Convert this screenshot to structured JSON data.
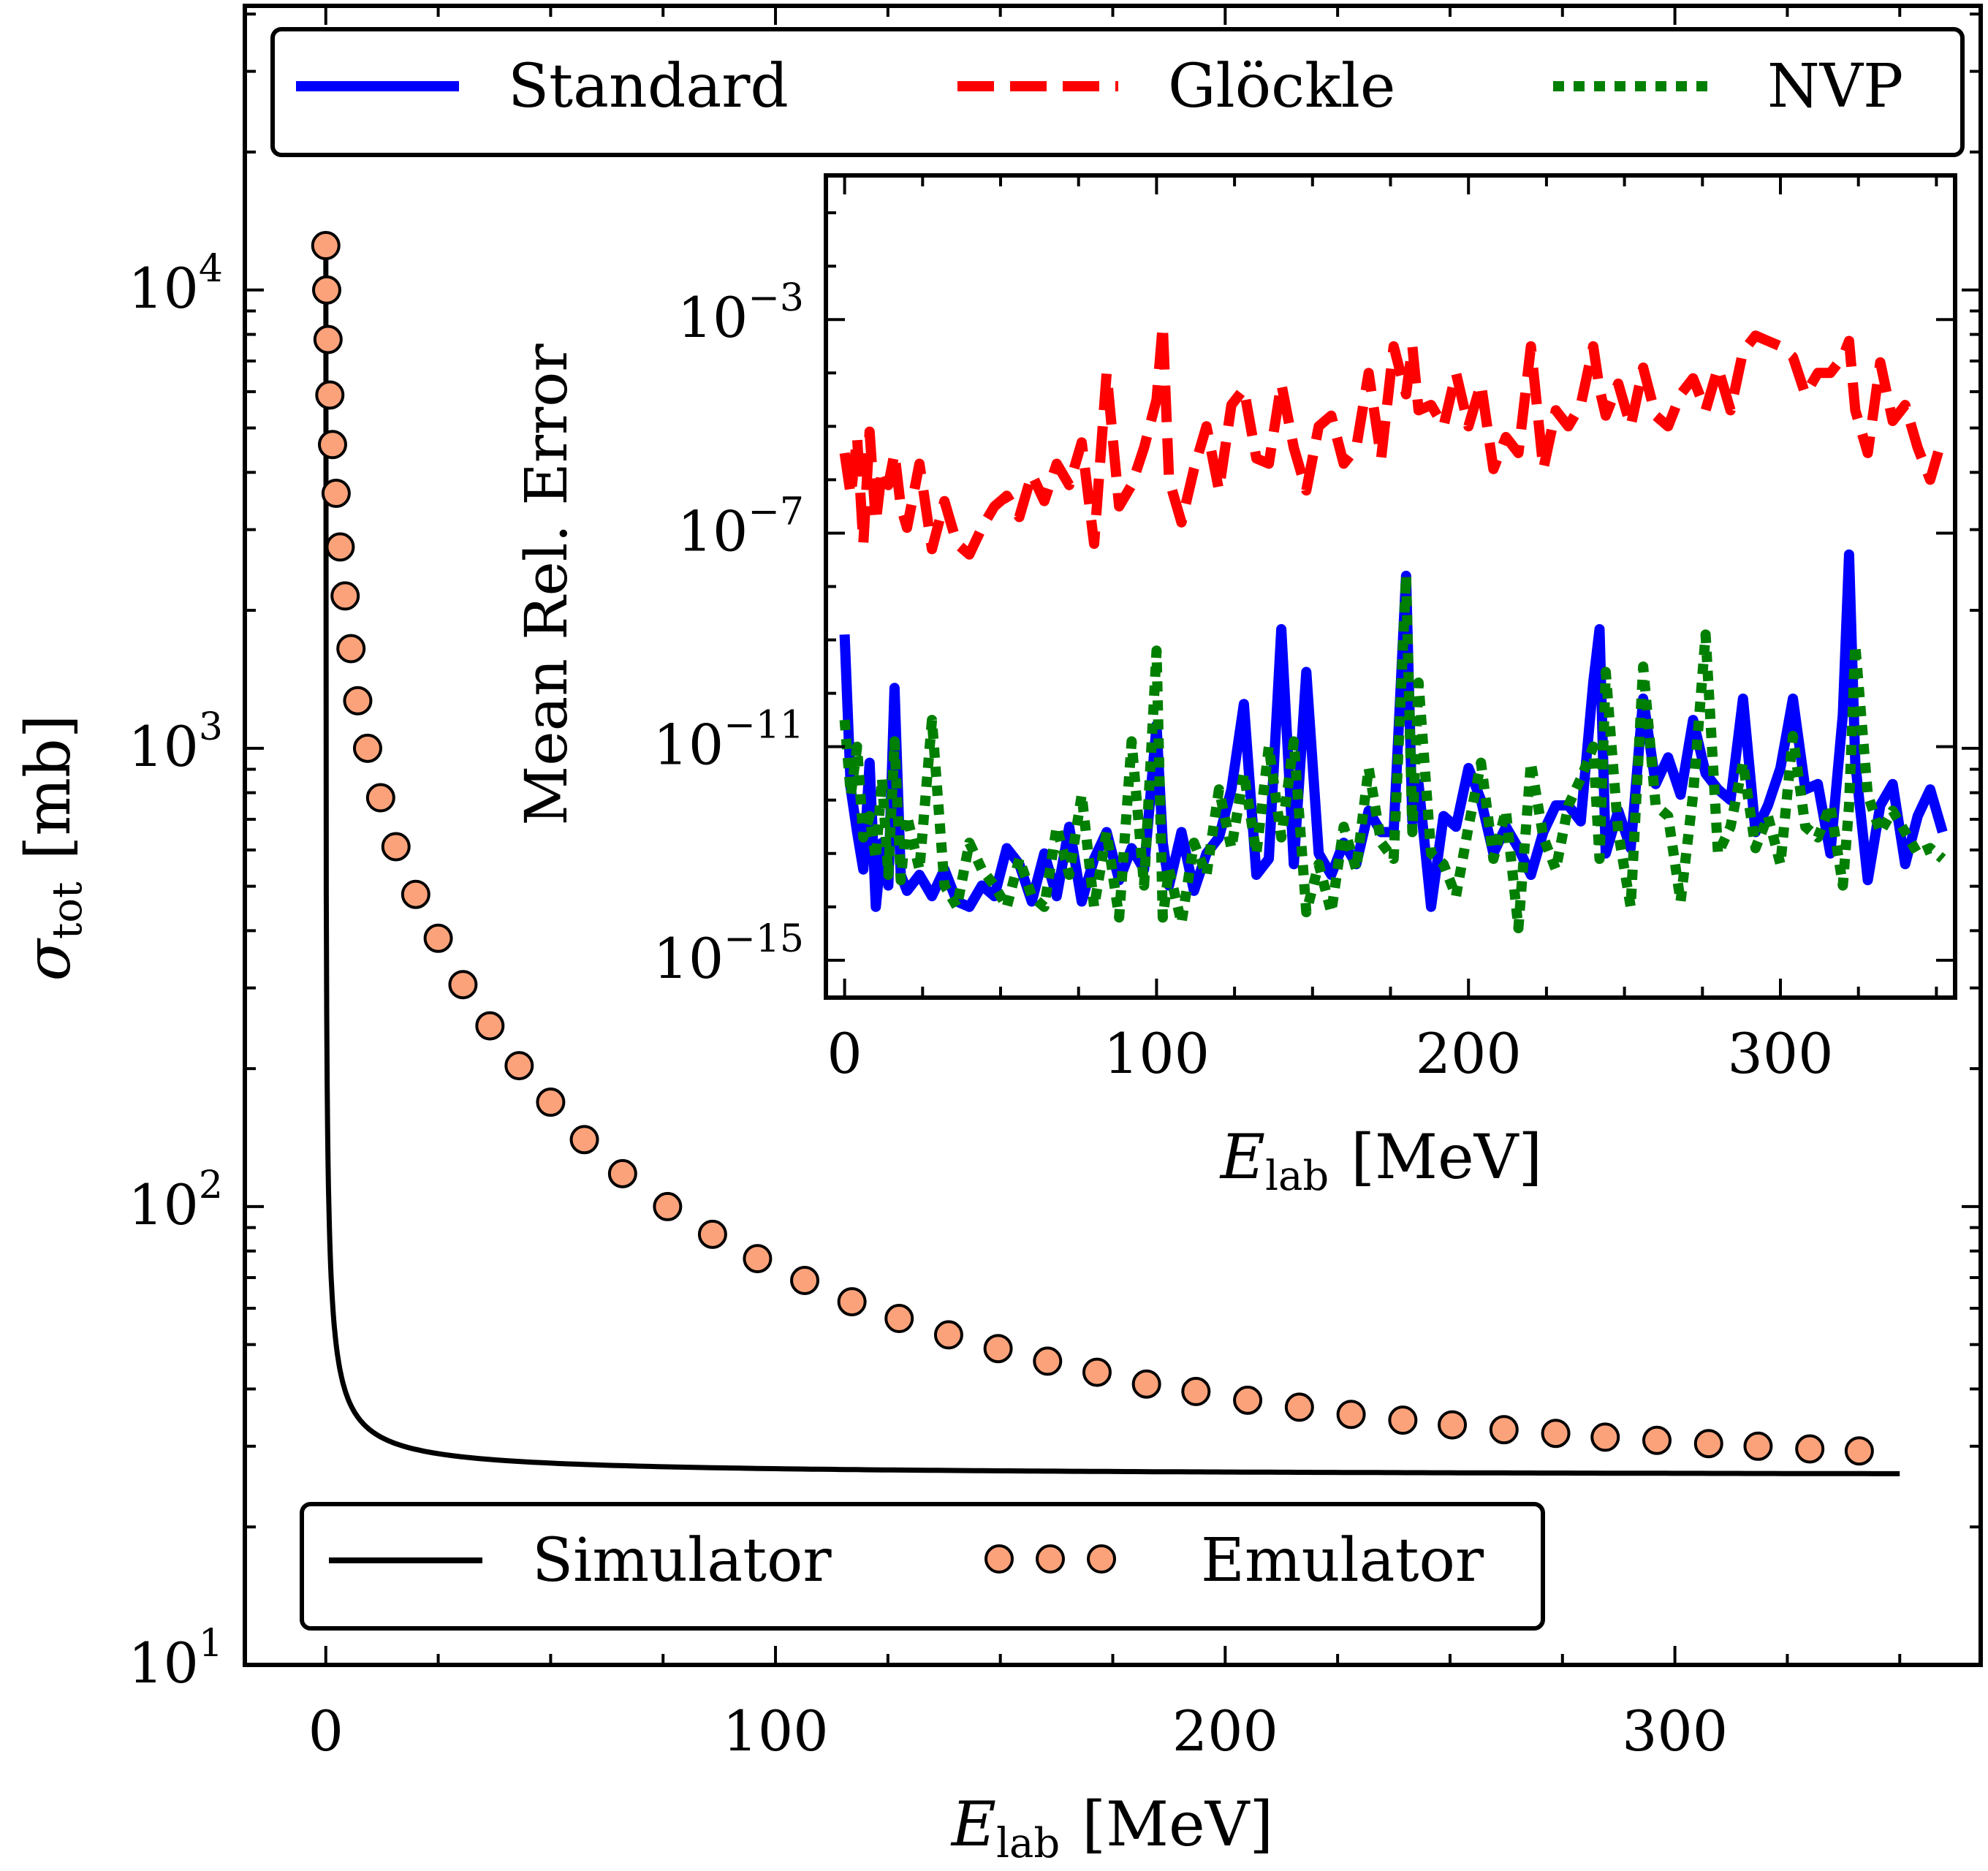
{
  "chart_data": [
    {
      "type": "line",
      "role": "main",
      "xlabel": "E_lab [MeV]",
      "ylabel": "σ_tot [mb]",
      "xlim": [
        -18,
        368
      ],
      "ylim_log10": [
        1,
        4.62
      ],
      "yscale": "log",
      "x_ticks": [
        0,
        100,
        200,
        300
      ],
      "x_tick_labels": [
        "0",
        "100",
        "200",
        "300"
      ],
      "y_ticks_log10": [
        1,
        2,
        3,
        4
      ],
      "y_tick_labels": [
        {
          "base": "10",
          "exp": "1"
        },
        {
          "base": "10",
          "exp": "2"
        },
        {
          "base": "10",
          "exp": "3"
        },
        {
          "base": "10",
          "exp": "4"
        }
      ],
      "series": [
        {
          "name": "Simulator",
          "style": "solid",
          "color": "#000000",
          "model": "sigma = 45/(E+0.0035)+7.5/sqrt(E+0.0035)+25.6",
          "x_range": [
            0,
            350
          ]
        },
        {
          "name": "Emulator",
          "style": "markers",
          "color": "#fca27a",
          "x": [
            0.0,
            0.2,
            0.5,
            0.9,
            1.5,
            2.3,
            3.2,
            4.3,
            5.6,
            7.1,
            9.3,
            12.2,
            15.6,
            20.0,
            25.0,
            30.5,
            36.5,
            43.0,
            50.0,
            57.5,
            66.0,
            76.0,
            86.0,
            96.0,
            106.5,
            117.0,
            127.5,
            138.5,
            149.5,
            160.5,
            171.5,
            182.5,
            193.5,
            205.0,
            216.5,
            228.0,
            239.5,
            250.5,
            262.0,
            273.5,
            284.5,
            296.0,
            307.5,
            318.5,
            330.0,
            341.0
          ],
          "values": [
            12500,
            10000,
            7800,
            5900,
            4600,
            3600,
            2750,
            2150,
            1650,
            1270,
            1000,
            780,
            610,
            480,
            385,
            305,
            248,
            203,
            169,
            140,
            118,
            100,
            87,
            77,
            69,
            62,
            57,
            52.5,
            49,
            46,
            43.5,
            41,
            39.5,
            37.8,
            36.5,
            35.2,
            34.2,
            33.4,
            32.6,
            32.0,
            31.4,
            30.9,
            30.4,
            30.0,
            29.6,
            29.3
          ]
        }
      ]
    },
    {
      "type": "line",
      "role": "inset",
      "xlabel": "E_lab [MeV]",
      "ylabel": "Mean Rel. Error",
      "xlim": [
        -6,
        356
      ],
      "ylim_log10": [
        -15.7,
        -0.3
      ],
      "yscale": "log",
      "x_ticks": [
        0,
        100,
        200,
        300
      ],
      "x_tick_labels": [
        "0",
        "100",
        "200",
        "300"
      ],
      "y_ticks_log10": [
        -3,
        -7,
        -11,
        -15
      ],
      "y_tick_labels": [
        {
          "base": "10",
          "exp": "−3"
        },
        {
          "base": "10",
          "exp": "−7"
        },
        {
          "base": "10",
          "exp": "−11"
        },
        {
          "base": "10",
          "exp": "−15"
        }
      ],
      "series": [
        {
          "name": "Standard",
          "style": "solid",
          "color": "#0000ff",
          "x": [
            0,
            2,
            4,
            6,
            8,
            10,
            12,
            14,
            16,
            18,
            20,
            24,
            28,
            32,
            36,
            40,
            44,
            48,
            52,
            56,
            60,
            64,
            68,
            72,
            76,
            80,
            84,
            88,
            92,
            96,
            100,
            102,
            104,
            108,
            112,
            116,
            120,
            124,
            128,
            132,
            136,
            140,
            144,
            148,
            152,
            156,
            160,
            164,
            168,
            172,
            176,
            180,
            182,
            184,
            188,
            192,
            196,
            200,
            204,
            208,
            212,
            216,
            220,
            224,
            228,
            232,
            236,
            240,
            242,
            244,
            248,
            252,
            256,
            260,
            264,
            268,
            272,
            276,
            280,
            284,
            288,
            292,
            296,
            300,
            304,
            308,
            312,
            316,
            320,
            322,
            324,
            328,
            332,
            336,
            340,
            344,
            348,
            352
          ],
          "values_log10": [
            -8.9,
            -11.8,
            -12.6,
            -13.3,
            -11.3,
            -14.0,
            -12.8,
            -13.6,
            -9.9,
            -13.4,
            -13.7,
            -13.4,
            -13.8,
            -13.3,
            -13.9,
            -14.0,
            -13.6,
            -13.8,
            -12.9,
            -13.2,
            -13.9,
            -13.0,
            -13.8,
            -12.5,
            -13.9,
            -13.1,
            -12.6,
            -13.5,
            -12.9,
            -13.3,
            -10.6,
            -12.8,
            -13.6,
            -12.6,
            -13.7,
            -13.0,
            -12.7,
            -11.8,
            -10.2,
            -13.4,
            -13.1,
            -8.8,
            -13.2,
            -9.6,
            -13.0,
            -13.4,
            -12.8,
            -13.2,
            -12.2,
            -12.6,
            -12.6,
            -7.8,
            -12.4,
            -11.7,
            -14.0,
            -12.3,
            -12.5,
            -11.4,
            -12.0,
            -13.0,
            -12.5,
            -12.9,
            -13.4,
            -12.6,
            -12.1,
            -12.1,
            -12.4,
            -9.8,
            -8.8,
            -13.0,
            -12.2,
            -12.9,
            -10.1,
            -11.7,
            -11.2,
            -11.9,
            -10.5,
            -11.5,
            -11.8,
            -12.0,
            -10.1,
            -12.6,
            -12.1,
            -11.4,
            -10.1,
            -11.8,
            -11.7,
            -13.0,
            -10.4,
            -7.4,
            -11.3,
            -13.5,
            -12.1,
            -11.7,
            -13.2,
            -12.3,
            -11.8,
            -12.6
          ]
        },
        {
          "name": "Glöckle",
          "style": "dashed",
          "color": "#ff0000",
          "x": [
            0,
            2,
            4,
            6,
            8,
            10,
            12,
            14,
            16,
            18,
            20,
            24,
            28,
            32,
            36,
            40,
            44,
            48,
            52,
            56,
            60,
            64,
            68,
            72,
            76,
            80,
            84,
            88,
            92,
            96,
            100,
            102,
            104,
            108,
            112,
            116,
            120,
            124,
            128,
            132,
            136,
            140,
            144,
            148,
            152,
            156,
            160,
            164,
            168,
            172,
            176,
            180,
            182,
            184,
            188,
            192,
            196,
            200,
            204,
            208,
            212,
            216,
            220,
            224,
            228,
            232,
            236,
            240,
            242,
            244,
            248,
            252,
            256,
            260,
            264,
            268,
            272,
            276,
            280,
            284,
            288,
            292,
            296,
            300,
            304,
            308,
            312,
            316,
            320,
            322,
            324,
            328,
            332,
            336,
            340,
            344,
            348,
            352
          ],
          "values_log10": [
            -5.5,
            -6.3,
            -5.2,
            -7.2,
            -5.1,
            -6.8,
            -5.8,
            -6.1,
            -5.5,
            -6.5,
            -6.9,
            -5.7,
            -7.3,
            -6.4,
            -7.2,
            -7.4,
            -6.9,
            -6.5,
            -6.3,
            -6.7,
            -5.9,
            -6.4,
            -5.7,
            -6.1,
            -5.3,
            -7.2,
            -4.0,
            -6.5,
            -6.1,
            -5.4,
            -4.5,
            -3.1,
            -6.0,
            -6.8,
            -5.8,
            -5.0,
            -6.2,
            -4.6,
            -4.3,
            -5.6,
            -5.7,
            -4.2,
            -5.4,
            -6.2,
            -5.0,
            -4.8,
            -5.7,
            -5.4,
            -4.0,
            -5.6,
            -3.5,
            -4.4,
            -3.5,
            -4.7,
            -4.6,
            -5.0,
            -4.0,
            -5.0,
            -4.2,
            -5.8,
            -5.2,
            -5.5,
            -3.5,
            -5.8,
            -4.7,
            -5.0,
            -4.6,
            -3.5,
            -4.3,
            -4.8,
            -4.2,
            -5.0,
            -3.9,
            -4.8,
            -5.0,
            -4.4,
            -4.1,
            -4.7,
            -3.9,
            -4.7,
            -3.6,
            -3.3,
            -3.4,
            -3.5,
            -3.7,
            -4.4,
            -4.0,
            -4.0,
            -3.7,
            -3.4,
            -4.7,
            -5.5,
            -3.8,
            -4.9,
            -4.6,
            -5.4,
            -6.0,
            -5.2
          ]
        },
        {
          "name": "NVP",
          "style": "dotted",
          "color": "#007f00",
          "x": [
            0,
            2,
            4,
            6,
            8,
            10,
            12,
            14,
            16,
            18,
            20,
            24,
            28,
            32,
            36,
            40,
            44,
            48,
            52,
            56,
            60,
            64,
            68,
            72,
            76,
            80,
            84,
            88,
            92,
            96,
            100,
            102,
            104,
            108,
            112,
            116,
            120,
            124,
            128,
            132,
            136,
            140,
            144,
            148,
            152,
            156,
            160,
            164,
            168,
            172,
            176,
            180,
            182,
            184,
            188,
            192,
            196,
            200,
            204,
            208,
            212,
            216,
            220,
            224,
            228,
            232,
            236,
            240,
            242,
            244,
            248,
            252,
            256,
            260,
            264,
            268,
            272,
            276,
            280,
            284,
            288,
            292,
            296,
            300,
            304,
            308,
            312,
            316,
            320,
            322,
            324,
            328,
            332,
            336,
            340,
            344,
            348,
            352
          ],
          "values_log10": [
            -10.5,
            -11.9,
            -11.0,
            -12.7,
            -12.3,
            -13.1,
            -11.6,
            -13.4,
            -10.9,
            -13.5,
            -12.3,
            -13.3,
            -10.5,
            -13.6,
            -14.0,
            -12.8,
            -13.3,
            -13.6,
            -14.0,
            -13.1,
            -13.8,
            -14.0,
            -12.5,
            -13.4,
            -11.9,
            -14.0,
            -12.6,
            -14.2,
            -10.9,
            -13.6,
            -9.2,
            -14.2,
            -13.3,
            -14.3,
            -12.8,
            -13.4,
            -11.8,
            -12.9,
            -11.5,
            -13.0,
            -11.0,
            -12.7,
            -10.9,
            -14.1,
            -13.2,
            -14.1,
            -12.5,
            -13.3,
            -11.4,
            -12.8,
            -13.1,
            -7.8,
            -12.6,
            -9.8,
            -13.0,
            -13.2,
            -13.8,
            -12.5,
            -11.3,
            -13.1,
            -12.2,
            -14.4,
            -11.3,
            -12.7,
            -13.3,
            -12.1,
            -11.6,
            -11.0,
            -13.1,
            -9.6,
            -12.6,
            -14.0,
            -9.5,
            -12.1,
            -12.3,
            -13.9,
            -11.9,
            -8.9,
            -13.0,
            -12.5,
            -11.3,
            -12.9,
            -12.3,
            -13.2,
            -10.8,
            -12.5,
            -12.7,
            -12.1,
            -13.6,
            -12.1,
            -9.1,
            -11.9,
            -12.6,
            -12.2,
            -12.6,
            -13.0,
            -12.9,
            -13.1
          ]
        }
      ]
    }
  ],
  "legends": {
    "top": [
      {
        "label": "Standard",
        "color": "#0000ff",
        "style": "solid"
      },
      {
        "label": "Glöckle",
        "color": "#ff0000",
        "style": "dashed"
      },
      {
        "label": "NVP",
        "color": "#007f00",
        "style": "dotted"
      }
    ],
    "bottom": [
      {
        "label": "Simulator",
        "color": "#000000",
        "style": "solid"
      },
      {
        "label": "Emulator",
        "color": "#fca27a",
        "style": "markers"
      }
    ]
  },
  "axis_text": {
    "main_x_var": "E",
    "main_x_sub": "lab",
    "main_x_unit": "[MeV]",
    "main_y_var": "σ",
    "main_y_sub": "tot",
    "main_y_unit": "[mb]",
    "inset_x_var": "E",
    "inset_x_sub": "lab",
    "inset_x_unit": "[MeV]",
    "inset_y_title": "Mean Rel. Error"
  }
}
